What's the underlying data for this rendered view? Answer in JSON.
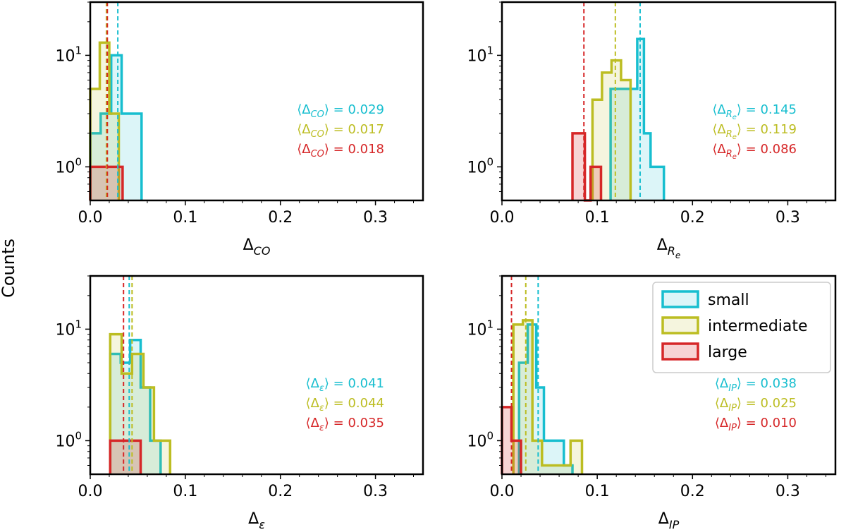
{
  "figure": {
    "ylabel": "Counts",
    "colors": {
      "small": "#17becf",
      "intermediate": "#bcbd22",
      "large": "#d62728"
    }
  },
  "legend": {
    "entries": [
      {
        "key": "small",
        "label": "small"
      },
      {
        "key": "intermediate",
        "label": "intermediate"
      },
      {
        "key": "large",
        "label": "large"
      }
    ]
  },
  "chart_data": [
    {
      "type": "histogram",
      "panel": "top-left",
      "xlabel_base": "Δ",
      "xlabel_sub": "CO",
      "xlim": [
        0,
        0.35
      ],
      "ylim": [
        0.5,
        30
      ],
      "yscale": "log",
      "xticks": [
        "0.0",
        "0.1",
        "0.2",
        "0.3"
      ],
      "yticks": [
        "10^1",
        "10^0"
      ],
      "series": [
        {
          "name": "small",
          "edges": [
            0.0,
            0.011,
            0.022,
            0.033,
            0.044,
            0.054
          ],
          "counts": [
            2,
            3,
            10,
            3,
            3
          ]
        },
        {
          "name": "intermediate",
          "edges": [
            0.0,
            0.01,
            0.02,
            0.03
          ],
          "counts": [
            5,
            13,
            3
          ]
        },
        {
          "name": "large",
          "edges": [
            0.0,
            0.034
          ],
          "counts": [
            1
          ]
        }
      ],
      "means": [
        {
          "name": "small",
          "value": 0.029,
          "text": "= 0.029"
        },
        {
          "name": "intermediate",
          "value": 0.017,
          "text": "= 0.017"
        },
        {
          "name": "large",
          "value": 0.018,
          "text": "= 0.018"
        }
      ]
    },
    {
      "type": "histogram",
      "panel": "top-right",
      "xlabel_base": "Δ",
      "xlabel_sub": "Re",
      "xlim": [
        0,
        0.35
      ],
      "ylim": [
        0.5,
        30
      ],
      "yscale": "log",
      "xticks": [
        "0.0",
        "0.1",
        "0.2",
        "0.3"
      ],
      "yticks": [
        "10^1",
        "10^0"
      ],
      "series": [
        {
          "name": "small",
          "edges": [
            0.114,
            0.135,
            0.142,
            0.149,
            0.156,
            0.163,
            0.17
          ],
          "counts": [
            5,
            5,
            14,
            2,
            1,
            1
          ]
        },
        {
          "name": "intermediate",
          "edges": [
            0.095,
            0.105,
            0.115,
            0.125,
            0.135
          ],
          "counts": [
            4,
            7,
            9,
            6
          ]
        },
        {
          "name": "large",
          "edges": [
            0.074,
            0.087,
            0.093,
            0.104
          ],
          "counts": [
            2,
            0,
            1
          ]
        }
      ],
      "means": [
        {
          "name": "small",
          "value": 0.145,
          "text": "= 0.145"
        },
        {
          "name": "intermediate",
          "value": 0.119,
          "text": "= 0.119"
        },
        {
          "name": "large",
          "value": 0.086,
          "text": "= 0.086"
        }
      ]
    },
    {
      "type": "histogram",
      "panel": "bottom-left",
      "xlabel_base": "Δ",
      "xlabel_sub": "ε",
      "xlim": [
        0,
        0.35
      ],
      "ylim": [
        0.5,
        30
      ],
      "yscale": "log",
      "xticks": [
        "0.0",
        "0.1",
        "0.2",
        "0.3"
      ],
      "yticks": [
        "10^1",
        "10^0"
      ],
      "series": [
        {
          "name": "small",
          "edges": [
            0.021,
            0.032,
            0.042,
            0.053,
            0.063,
            0.074
          ],
          "counts": [
            6,
            5,
            8,
            3,
            1
          ]
        },
        {
          "name": "intermediate",
          "edges": [
            0.021,
            0.033,
            0.044,
            0.056,
            0.067,
            0.078,
            0.084
          ],
          "counts": [
            9,
            4,
            6,
            3,
            1,
            1
          ]
        },
        {
          "name": "large",
          "edges": [
            0.021,
            0.053
          ],
          "counts": [
            1
          ]
        }
      ],
      "means": [
        {
          "name": "small",
          "value": 0.041,
          "text": "= 0.041"
        },
        {
          "name": "intermediate",
          "value": 0.044,
          "text": "= 0.044"
        },
        {
          "name": "large",
          "value": 0.035,
          "text": "= 0.035"
        }
      ]
    },
    {
      "type": "histogram",
      "panel": "bottom-right",
      "xlabel_base": "Δ",
      "xlabel_sub": "IP",
      "xlim": [
        0,
        0.35
      ],
      "ylim": [
        0.5,
        30
      ],
      "yscale": "log",
      "xticks": [
        "0.0",
        "0.1",
        "0.2",
        "0.3"
      ],
      "yticks": [
        "10^1",
        "10^0"
      ],
      "series": [
        {
          "name": "small",
          "edges": [
            0.018,
            0.027,
            0.036,
            0.044,
            0.065,
            0.074
          ],
          "counts": [
            5,
            11,
            3,
            1,
            0.6
          ]
        },
        {
          "name": "intermediate",
          "edges": [
            0.012,
            0.022,
            0.032,
            0.042,
            0.072,
            0.084
          ],
          "counts": [
            11,
            12,
            1,
            0.6,
            1
          ]
        },
        {
          "name": "large",
          "edges": [
            0.0,
            0.01,
            0.02
          ],
          "counts": [
            2,
            1
          ]
        }
      ],
      "means": [
        {
          "name": "small",
          "value": 0.038,
          "text": "= 0.038"
        },
        {
          "name": "intermediate",
          "value": 0.025,
          "text": "= 0.025"
        },
        {
          "name": "large",
          "value": 0.01,
          "text": "= 0.010"
        }
      ]
    }
  ]
}
